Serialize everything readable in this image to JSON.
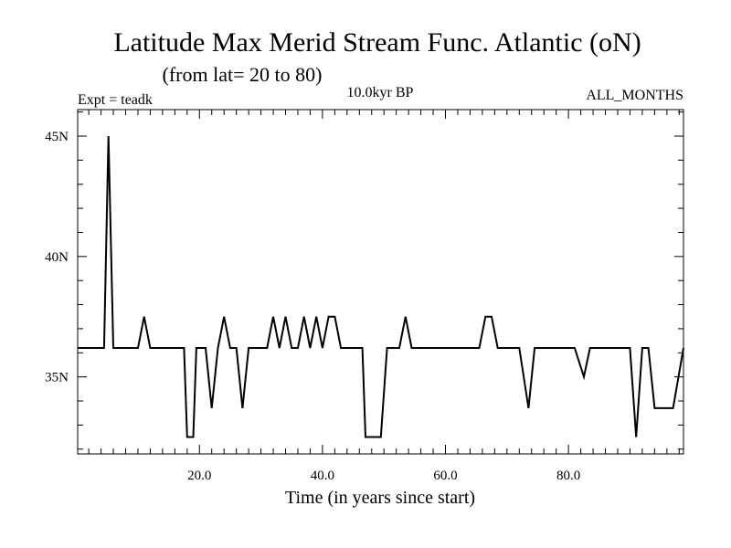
{
  "chart_data": {
    "type": "line",
    "title": "Latitude Max Merid Stream Func. Atlantic (oN)",
    "subtitle": "(from lat= 20 to 80)",
    "experiment": "Expt = teadk",
    "period": "10.0kyr BP",
    "months": "ALL_MONTHS",
    "xlabel": "Time (in years since start)",
    "ylabel": "",
    "xlim": [
      0.2,
      98.7
    ],
    "ylim": [
      31.8,
      46.1
    ],
    "x_ticks": [
      20,
      40,
      60,
      80
    ],
    "x_tick_labels": [
      "20.0",
      "40.0",
      "60.0",
      "80.0"
    ],
    "y_ticks": [
      35,
      40,
      45
    ],
    "y_tick_labels": [
      "35N",
      "40N",
      "45N"
    ],
    "grid": false,
    "series": [
      {
        "name": "Latitude Max Merid Stream Func.",
        "x": [
          0.2,
          4.5,
          5.2,
          6.0,
          10.0,
          11.0,
          12.0,
          17.5,
          18.0,
          19.0,
          19.5,
          21.0,
          22.0,
          23.0,
          24.0,
          25.0,
          26.0,
          27.0,
          28.0,
          29.0,
          31.0,
          32.0,
          33.0,
          34.0,
          35.0,
          36.0,
          37.0,
          38.0,
          39.0,
          40.0,
          41.0,
          42.0,
          43.0,
          43.5,
          46.5,
          47.0,
          49.5,
          50.5,
          52.5,
          53.5,
          54.5,
          65.5,
          66.5,
          67.5,
          68.5,
          72.0,
          73.5,
          74.5,
          81.0,
          82.5,
          83.5,
          90.0,
          91.0,
          92.0,
          93.0,
          94.0,
          97.0,
          98.7
        ],
        "y": [
          36.2,
          36.2,
          45.0,
          36.2,
          36.2,
          37.5,
          36.2,
          36.2,
          32.5,
          32.5,
          36.2,
          36.2,
          33.7,
          36.2,
          37.5,
          36.2,
          36.2,
          33.7,
          36.2,
          36.2,
          36.2,
          37.5,
          36.2,
          37.5,
          36.2,
          36.2,
          37.5,
          36.2,
          37.5,
          36.2,
          37.5,
          37.5,
          36.2,
          36.2,
          36.2,
          32.5,
          32.5,
          36.2,
          36.2,
          37.5,
          36.2,
          36.2,
          37.5,
          37.5,
          36.2,
          36.2,
          33.7,
          36.2,
          36.2,
          35.0,
          36.2,
          36.2,
          32.5,
          36.2,
          36.2,
          33.7,
          33.7,
          36.2
        ],
        "color": "#000000"
      }
    ]
  }
}
